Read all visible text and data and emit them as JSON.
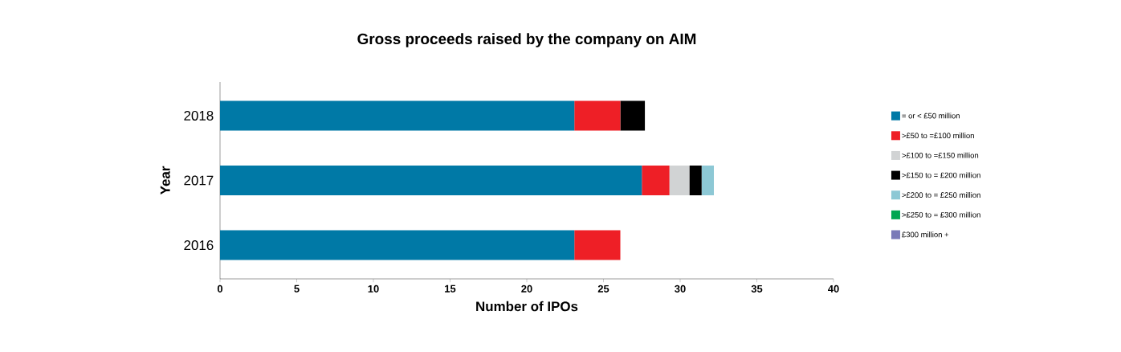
{
  "chart_data": {
    "type": "bar",
    "title": "Gross proceeds raised by the company on AIM",
    "xlabel": "Number of IPOs",
    "ylabel": "Year",
    "orientation": "horizontal",
    "stacked": true,
    "legend": "right",
    "grid": false,
    "categories": [
      "2018",
      "2017",
      "2016"
    ],
    "xlim": [
      0,
      40
    ],
    "xticks": [
      0,
      5,
      10,
      15,
      20,
      25,
      30,
      35,
      40
    ],
    "series": [
      {
        "name": "= or < £50 million",
        "color": "#0079a6",
        "values": [
          23.1,
          27.5,
          23.1
        ]
      },
      {
        "name": ">£50 to =£100 million",
        "color": "#ee1f26",
        "values": [
          3.0,
          1.8,
          3.0
        ]
      },
      {
        "name": ">£100 to =£150 million",
        "color": "#d1d3d4",
        "values": [
          null,
          1.3,
          null
        ]
      },
      {
        "name": ">£150 to = £200 million",
        "color": "#000000",
        "values": [
          1.6,
          0.8,
          null
        ]
      },
      {
        "name": ">£200 to = £250 million",
        "color": "#8dc8d5",
        "values": [
          null,
          0.8,
          null
        ]
      },
      {
        "name": ">£250 to = £300 million",
        "color": "#00a651",
        "values": [
          null,
          null,
          null
        ]
      },
      {
        "name": "£300 million +",
        "color": "#7a7ab8",
        "values": [
          null,
          null,
          null
        ]
      }
    ]
  }
}
